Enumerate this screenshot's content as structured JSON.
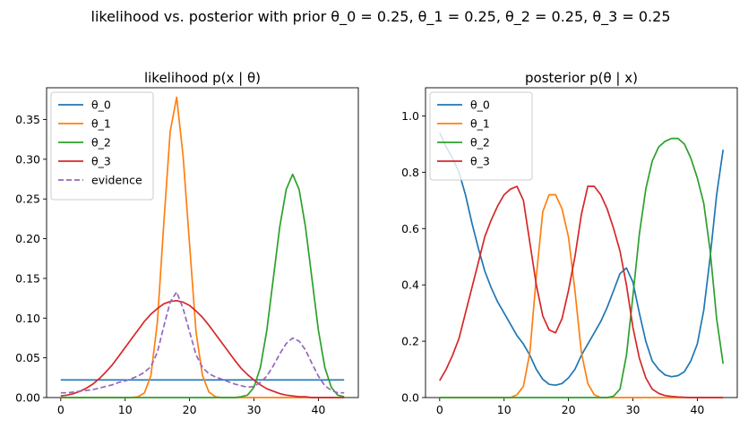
{
  "figure": {
    "suptitle": "likelihood vs. posterior with prior θ_0 = 0.25, θ_1 = 0.25, θ_2 = 0.25, θ_3 = 0.25"
  },
  "colors": {
    "theta_0": "#1f77b4",
    "theta_1": "#ff7f0e",
    "theta_2": "#2ca02c",
    "theta_3": "#d62728",
    "evidence": "#9467bd"
  },
  "chart_data": [
    {
      "type": "line",
      "title": "likelihood p(x | θ)",
      "xlabel": "",
      "ylabel": "",
      "xlim": [
        -2.2,
        46.2
      ],
      "ylim": [
        0,
        0.39
      ],
      "xticks": [
        0,
        10,
        20,
        30,
        40
      ],
      "yticks": [
        0.0,
        0.05,
        0.1,
        0.15,
        0.2,
        0.25,
        0.3,
        0.35
      ],
      "ytick_labels": [
        "0.00",
        "0.05",
        "0.10",
        "0.15",
        "0.20",
        "0.25",
        "0.30",
        "0.35"
      ],
      "grid": false,
      "legend": "upper-left",
      "x": [
        0,
        1,
        2,
        3,
        4,
        5,
        6,
        7,
        8,
        9,
        10,
        11,
        12,
        13,
        14,
        15,
        16,
        17,
        18,
        19,
        20,
        21,
        22,
        23,
        24,
        25,
        26,
        27,
        28,
        29,
        30,
        31,
        32,
        33,
        34,
        35,
        36,
        37,
        38,
        39,
        40,
        41,
        42,
        43,
        44
      ],
      "series": [
        {
          "name": "θ_0",
          "color_key": "theta_0",
          "style": "solid",
          "values": [
            0.0222,
            0.0222,
            0.0222,
            0.0222,
            0.0222,
            0.0222,
            0.0222,
            0.0222,
            0.0222,
            0.0222,
            0.0222,
            0.0222,
            0.0222,
            0.0222,
            0.0222,
            0.0222,
            0.0222,
            0.0222,
            0.0222,
            0.0222,
            0.0222,
            0.0222,
            0.0222,
            0.0222,
            0.0222,
            0.0222,
            0.0222,
            0.0222,
            0.0222,
            0.0222,
            0.0222,
            0.0222,
            0.0222,
            0.0222,
            0.0222,
            0.0222,
            0.0222,
            0.0222,
            0.0222,
            0.0222,
            0.0222,
            0.0222,
            0.0222,
            0.0222,
            0.0222
          ]
        },
        {
          "name": "θ_1",
          "color_key": "theta_1",
          "style": "solid",
          "values": [
            0,
            0,
            0,
            0,
            0,
            0,
            0,
            0,
            0,
            0,
            0,
            0,
            0.001,
            0.006,
            0.028,
            0.095,
            0.22,
            0.335,
            0.378,
            0.304,
            0.193,
            0.083,
            0.028,
            0.007,
            0.001,
            0,
            0,
            0,
            0,
            0,
            0,
            0,
            0,
            0,
            0,
            0,
            0,
            0,
            0,
            0,
            0,
            0,
            0,
            0,
            0
          ]
        },
        {
          "name": "θ_2",
          "color_key": "theta_2",
          "style": "solid",
          "values": [
            0,
            0,
            0,
            0,
            0,
            0,
            0,
            0,
            0,
            0,
            0,
            0,
            0,
            0,
            0,
            0,
            0,
            0,
            0,
            0,
            0,
            0,
            0,
            0,
            0,
            0,
            0,
            0,
            0.001,
            0.003,
            0.013,
            0.038,
            0.085,
            0.15,
            0.215,
            0.262,
            0.281,
            0.262,
            0.215,
            0.15,
            0.085,
            0.038,
            0.013,
            0.003,
            0.001
          ]
        },
        {
          "name": "θ_3",
          "color_key": "theta_3",
          "style": "solid",
          "values": [
            0.002,
            0.003,
            0.005,
            0.008,
            0.012,
            0.017,
            0.024,
            0.032,
            0.041,
            0.052,
            0.063,
            0.074,
            0.085,
            0.096,
            0.105,
            0.112,
            0.118,
            0.121,
            0.122,
            0.12,
            0.116,
            0.109,
            0.101,
            0.091,
            0.08,
            0.069,
            0.058,
            0.047,
            0.037,
            0.029,
            0.022,
            0.016,
            0.011,
            0.008,
            0.005,
            0.003,
            0.002,
            0.001,
            0.001,
            0,
            0,
            0,
            0,
            0,
            0
          ]
        },
        {
          "name": "evidence",
          "color_key": "evidence",
          "style": "dashed",
          "values": [
            0.006,
            0.006,
            0.007,
            0.008,
            0.009,
            0.01,
            0.012,
            0.014,
            0.016,
            0.019,
            0.021,
            0.024,
            0.027,
            0.032,
            0.039,
            0.057,
            0.09,
            0.12,
            0.133,
            0.112,
            0.083,
            0.054,
            0.038,
            0.03,
            0.026,
            0.023,
            0.02,
            0.017,
            0.015,
            0.013,
            0.014,
            0.019,
            0.027,
            0.04,
            0.055,
            0.068,
            0.075,
            0.071,
            0.06,
            0.043,
            0.027,
            0.015,
            0.009,
            0.006,
            0.006
          ]
        }
      ]
    },
    {
      "type": "line",
      "title": "posterior p(θ  | x)",
      "xlabel": "",
      "ylabel": "",
      "xlim": [
        -2.2,
        46.2
      ],
      "ylim": [
        0,
        1.1
      ],
      "xticks": [
        0,
        10,
        20,
        30,
        40
      ],
      "yticks": [
        0.0,
        0.2,
        0.4,
        0.6,
        0.8,
        1.0
      ],
      "ytick_labels": [
        "0.0",
        "0.2",
        "0.4",
        "0.6",
        "0.8",
        "1.0"
      ],
      "grid": false,
      "legend": "upper-left",
      "x": [
        0,
        1,
        2,
        3,
        4,
        5,
        6,
        7,
        8,
        9,
        10,
        11,
        12,
        13,
        14,
        15,
        16,
        17,
        18,
        19,
        20,
        21,
        22,
        23,
        24,
        25,
        26,
        27,
        28,
        29,
        30,
        31,
        32,
        33,
        34,
        35,
        36,
        37,
        38,
        39,
        40,
        41,
        42,
        43,
        44
      ],
      "series": [
        {
          "name": "θ_0",
          "color_key": "theta_0",
          "values": [
            0.94,
            0.89,
            0.85,
            0.8,
            0.72,
            0.62,
            0.53,
            0.45,
            0.39,
            0.34,
            0.3,
            0.26,
            0.22,
            0.19,
            0.15,
            0.1,
            0.065,
            0.047,
            0.044,
            0.05,
            0.07,
            0.1,
            0.15,
            0.19,
            0.23,
            0.27,
            0.32,
            0.38,
            0.44,
            0.46,
            0.41,
            0.3,
            0.2,
            0.13,
            0.1,
            0.08,
            0.074,
            0.078,
            0.092,
            0.13,
            0.19,
            0.31,
            0.5,
            0.72,
            0.88
          ]
        },
        {
          "name": "θ_1",
          "color_key": "theta_1",
          "values": [
            0,
            0,
            0,
            0,
            0,
            0,
            0,
            0,
            0,
            0,
            0,
            0,
            0.01,
            0.04,
            0.16,
            0.43,
            0.66,
            0.72,
            0.72,
            0.67,
            0.57,
            0.38,
            0.16,
            0.05,
            0.01,
            0,
            0,
            0,
            0,
            0,
            0,
            0,
            0,
            0,
            0,
            0,
            0,
            0,
            0,
            0,
            0,
            0,
            0,
            0,
            0
          ]
        },
        {
          "name": "θ_2",
          "color_key": "theta_2",
          "values": [
            0,
            0,
            0,
            0,
            0,
            0,
            0,
            0,
            0,
            0,
            0,
            0,
            0,
            0,
            0,
            0,
            0,
            0,
            0,
            0,
            0,
            0,
            0,
            0,
            0,
            0,
            0,
            0.005,
            0.03,
            0.15,
            0.36,
            0.58,
            0.74,
            0.84,
            0.89,
            0.91,
            0.92,
            0.92,
            0.9,
            0.85,
            0.78,
            0.69,
            0.52,
            0.28,
            0.12
          ]
        },
        {
          "name": "θ_3",
          "color_key": "theta_3",
          "values": [
            0.06,
            0.1,
            0.15,
            0.21,
            0.3,
            0.39,
            0.48,
            0.57,
            0.63,
            0.68,
            0.72,
            0.74,
            0.75,
            0.7,
            0.55,
            0.4,
            0.29,
            0.24,
            0.23,
            0.28,
            0.38,
            0.5,
            0.65,
            0.75,
            0.75,
            0.72,
            0.67,
            0.6,
            0.52,
            0.4,
            0.25,
            0.14,
            0.07,
            0.03,
            0.015,
            0.007,
            0.004,
            0.002,
            0.001,
            0,
            0,
            0,
            0,
            0,
            0
          ]
        }
      ]
    }
  ]
}
